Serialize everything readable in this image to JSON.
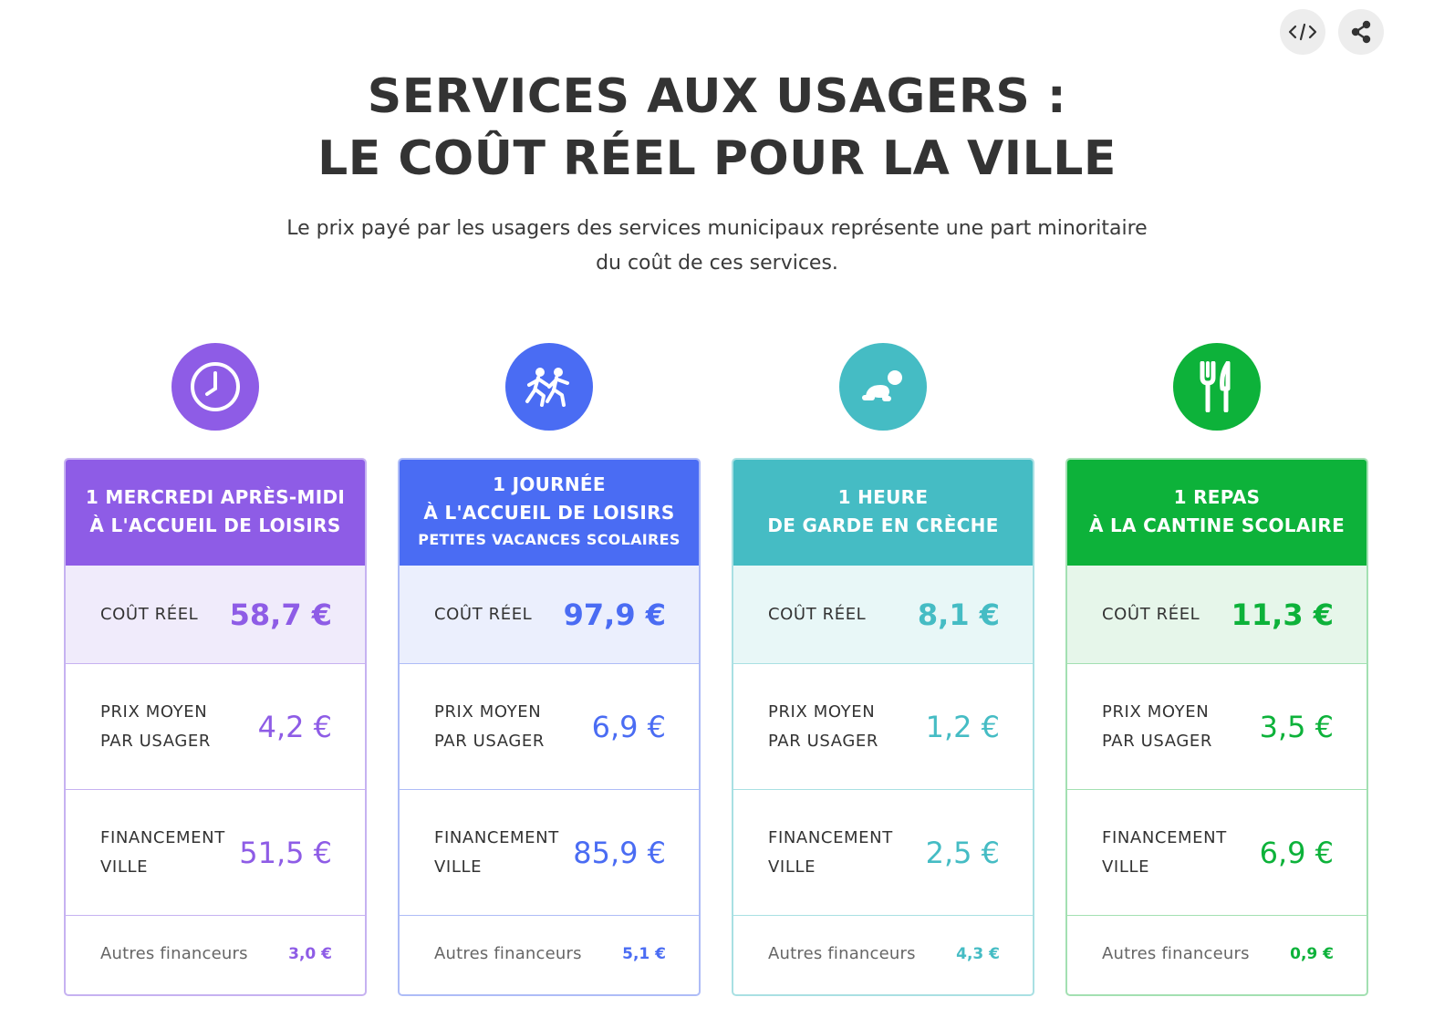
{
  "actions": {
    "embed_icon": "code-icon",
    "share_icon": "share-icon"
  },
  "header": {
    "title_line1": "SERVICES AUX USAGERS :",
    "title_line2": "LE COÛT RÉEL POUR LA VILLE",
    "subtitle_line1": "Le prix payé par les usagers des services municipaux représente une part minoritaire",
    "subtitle_line2": "du coût de ces services."
  },
  "labels": {
    "cout_reel": "COÛT RÉEL",
    "prix_line1": "PRIX MOYEN",
    "prix_line2": "PAR USAGER",
    "fin_line1": "FINANCEMENT",
    "fin_line2": "VILLE",
    "autres": "Autres financeurs"
  },
  "services": [
    {
      "icon": "clock-icon",
      "color": "#8e5ce6",
      "tint": "#f0ebfb",
      "border": "#c6b2f1",
      "head_line1": "1 MERCREDI APRÈS-MIDI",
      "head_line2": "À L'ACCUEIL DE LOISIRS",
      "head_line3": "",
      "cout_reel": "58,7 €",
      "prix_moyen": "4,2 €",
      "financement_ville": "51,5 €",
      "autres_financeurs": "3,0 €"
    },
    {
      "icon": "children-running-icon",
      "color": "#4a6cf3",
      "tint": "#ebeffd",
      "border": "#aebcf7",
      "head_line1": "1 JOURNÉE",
      "head_line2": "À L'ACCUEIL DE LOISIRS",
      "head_line3": "PETITES VACANCES SCOLAIRES",
      "cout_reel": "97,9 €",
      "prix_moyen": "6,9 €",
      "financement_ville": "85,9 €",
      "autres_financeurs": "5,1 €"
    },
    {
      "icon": "crawling-baby-icon",
      "color": "#45bcc4",
      "tint": "#e8f7f7",
      "border": "#a9e0e3",
      "head_line1": "1 HEURE",
      "head_line2": "DE GARDE EN CRÈCHE",
      "head_line3": "",
      "cout_reel": "8,1 €",
      "prix_moyen": "1,2 €",
      "financement_ville": "2,5 €",
      "autres_financeurs": "4,3 €"
    },
    {
      "icon": "fork-knife-icon",
      "color": "#0db23a",
      "tint": "#e6f6ea",
      "border": "#a3e0b2",
      "head_line1": "1 REPAS",
      "head_line2": "À LA CANTINE SCOLAIRE",
      "head_line3": "",
      "cout_reel": "11,3 €",
      "prix_moyen": "3,5 €",
      "financement_ville": "6,9 €",
      "autres_financeurs": "0,9 €"
    }
  ]
}
